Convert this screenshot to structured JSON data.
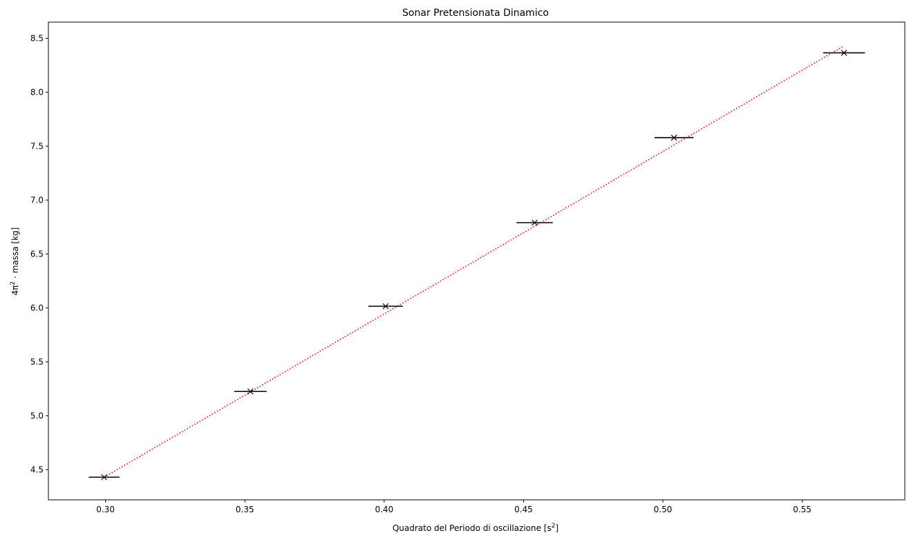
{
  "chart_data": {
    "type": "scatter",
    "title": "Sonar Pretensionata Dinamico",
    "xlabel": {
      "prefix": "Quadrato del Periodo di oscillazione [s",
      "sup": "2",
      "suffix": "]"
    },
    "ylabel": {
      "prefix": "4π",
      "sup": "2",
      "suffix": " · massa [kg]"
    },
    "xlim": [
      0.2795,
      0.5868
    ],
    "ylim": [
      4.22,
      8.65
    ],
    "xticks": [
      0.3,
      0.35,
      0.4,
      0.45,
      0.5,
      0.55
    ],
    "xtick_labels": [
      "0.30",
      "0.35",
      "0.40",
      "0.45",
      "0.50",
      "0.55"
    ],
    "yticks": [
      4.5,
      5.0,
      5.5,
      6.0,
      6.5,
      7.0,
      7.5,
      8.0,
      8.5
    ],
    "ytick_labels": [
      "4.5",
      "5.0",
      "5.5",
      "6.0",
      "6.5",
      "7.0",
      "7.5",
      "8.0",
      "8.5"
    ],
    "grid": false,
    "colors": {
      "points": "#000000",
      "fit": "#ff0000"
    },
    "series": [
      {
        "marker": "x",
        "points": [
          {
            "x": 0.2995,
            "y": 4.43,
            "xerr": 0.0055
          },
          {
            "x": 0.352,
            "y": 5.225,
            "xerr": 0.0058
          },
          {
            "x": 0.4005,
            "y": 6.015,
            "xerr": 0.0062
          },
          {
            "x": 0.454,
            "y": 6.79,
            "xerr": 0.0065
          },
          {
            "x": 0.504,
            "y": 7.578,
            "xerr": 0.007
          },
          {
            "x": 0.565,
            "y": 8.365,
            "xerr": 0.0075
          }
        ]
      }
    ],
    "fit_line": {
      "style": "dotted",
      "x": [
        0.2995,
        0.565
      ],
      "y": [
        4.43,
        8.43
      ]
    }
  }
}
